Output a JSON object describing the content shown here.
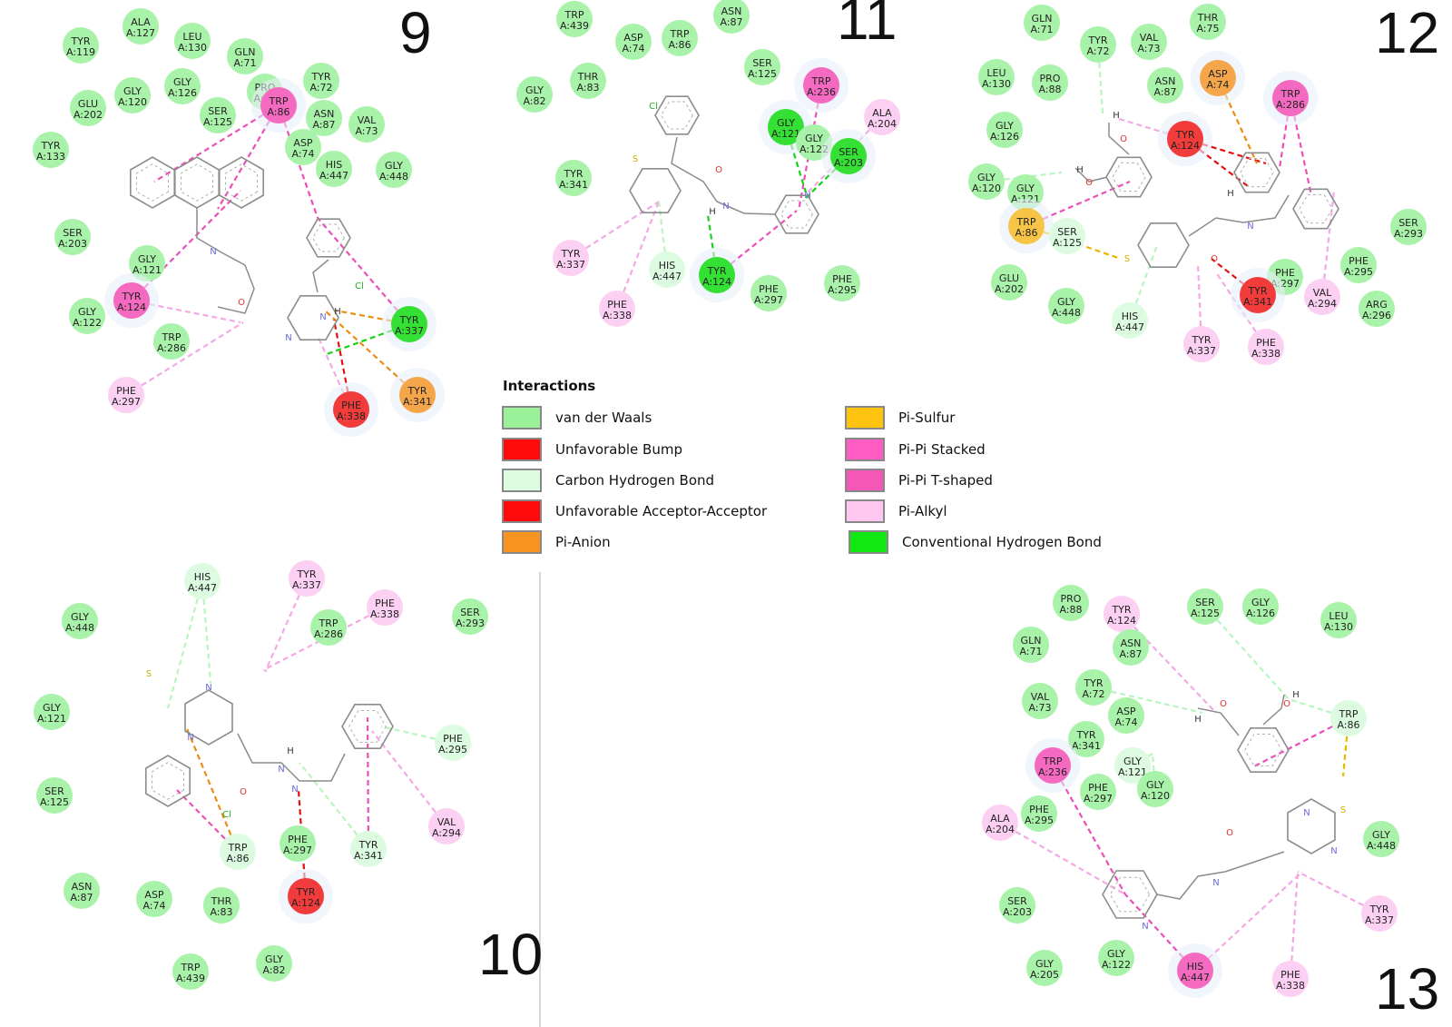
{
  "legend": {
    "title": "Interactions",
    "items": [
      {
        "label": "van der Waals",
        "color": "#99f29a"
      },
      {
        "label": "Unfavorable Bump",
        "color": "#ff0b0b"
      },
      {
        "label": "Carbon Hydrogen Bond",
        "color": "#dcfde0"
      },
      {
        "label": "Unfavorable Acceptor-Acceptor",
        "color": "#ff0b0b"
      },
      {
        "label": "Pi-Anion",
        "color": "#f7931e"
      },
      {
        "label": "Pi-Sulfur",
        "color": "#ffc20e"
      },
      {
        "label": "Pi-Pi Stacked",
        "color": "#ff5cc4"
      },
      {
        "label": "Pi-Pi T-shaped",
        "color": "#f457b5"
      },
      {
        "label": "Pi-Alkyl",
        "color": "#ffc6f0"
      },
      {
        "label": "Conventional Hydrogen Bond",
        "color": "#11e811"
      }
    ]
  },
  "panels": [
    {
      "number": "9",
      "residues": [
        {
          "name": "ALA",
          "id": "A:127",
          "type": "vdw"
        },
        {
          "name": "TYR",
          "id": "A:119",
          "type": "vdw"
        },
        {
          "name": "LEU",
          "id": "A:130",
          "type": "vdw"
        },
        {
          "name": "GLN",
          "id": "A:71",
          "type": "vdw"
        },
        {
          "name": "TYR",
          "id": "A:72",
          "type": "vdw"
        },
        {
          "name": "GLY",
          "id": "A:126",
          "type": "vdw"
        },
        {
          "name": "GLY",
          "id": "A:120",
          "type": "vdw"
        },
        {
          "name": "GLU",
          "id": "A:202",
          "type": "vdw"
        },
        {
          "name": "PRO",
          "id": "A:88",
          "type": "vdw"
        },
        {
          "name": "TRP",
          "id": "A:86",
          "type": "pipi"
        },
        {
          "name": "ASN",
          "id": "A:87",
          "type": "vdw"
        },
        {
          "name": "VAL",
          "id": "A:73",
          "type": "vdw"
        },
        {
          "name": "SER",
          "id": "A:125",
          "type": "vdw"
        },
        {
          "name": "ASP",
          "id": "A:74",
          "type": "vdw"
        },
        {
          "name": "TYR",
          "id": "A:133",
          "type": "vdw"
        },
        {
          "name": "HIS",
          "id": "A:447",
          "type": "vdw"
        },
        {
          "name": "GLY",
          "id": "A:448",
          "type": "vdw"
        },
        {
          "name": "SER",
          "id": "A:203",
          "type": "vdw"
        },
        {
          "name": "GLY",
          "id": "A:121",
          "type": "vdw"
        },
        {
          "name": "TYR",
          "id": "A:124",
          "type": "pipi"
        },
        {
          "name": "GLY",
          "id": "A:122",
          "type": "vdw"
        },
        {
          "name": "TRP",
          "id": "A:286",
          "type": "vdw"
        },
        {
          "name": "TYR",
          "id": "A:337",
          "type": "hbond"
        },
        {
          "name": "PHE",
          "id": "A:297",
          "type": "pialkyl"
        },
        {
          "name": "PHE",
          "id": "A:338",
          "type": "unfav"
        },
        {
          "name": "TYR",
          "id": "A:341",
          "type": "anion"
        }
      ]
    },
    {
      "number": "11",
      "residues": [
        {
          "name": "TRP",
          "id": "A:439",
          "type": "vdw"
        },
        {
          "name": "ASN",
          "id": "A:87",
          "type": "vdw"
        },
        {
          "name": "ASP",
          "id": "A:74",
          "type": "vdw"
        },
        {
          "name": "TRP",
          "id": "A:86",
          "type": "vdw"
        },
        {
          "name": "GLY",
          "id": "A:82",
          "type": "vdw"
        },
        {
          "name": "THR",
          "id": "A:83",
          "type": "vdw"
        },
        {
          "name": "SER",
          "id": "A:125",
          "type": "vdw"
        },
        {
          "name": "TRP",
          "id": "A:236",
          "type": "pipi"
        },
        {
          "name": "ALA",
          "id": "A:204",
          "type": "pialkyl"
        },
        {
          "name": "GLY",
          "id": "A:121",
          "type": "hbond"
        },
        {
          "name": "GLY",
          "id": "A:122",
          "type": "vdw"
        },
        {
          "name": "SER",
          "id": "A:203",
          "type": "hbond"
        },
        {
          "name": "TYR",
          "id": "A:341",
          "type": "vdw"
        },
        {
          "name": "TYR",
          "id": "A:337",
          "type": "pialkyl"
        },
        {
          "name": "HIS",
          "id": "A:447",
          "type": "chb"
        },
        {
          "name": "TYR",
          "id": "A:124",
          "type": "hbond"
        },
        {
          "name": "PHE",
          "id": "A:297",
          "type": "vdw"
        },
        {
          "name": "PHE",
          "id": "A:295",
          "type": "vdw"
        },
        {
          "name": "PHE",
          "id": "A:338",
          "type": "pialkyl"
        }
      ]
    },
    {
      "number": "12",
      "residues": [
        {
          "name": "GLN",
          "id": "A:71",
          "type": "vdw"
        },
        {
          "name": "TYR",
          "id": "A:72",
          "type": "vdw"
        },
        {
          "name": "VAL",
          "id": "A:73",
          "type": "vdw"
        },
        {
          "name": "THR",
          "id": "A:75",
          "type": "vdw"
        },
        {
          "name": "LEU",
          "id": "A:130",
          "type": "vdw"
        },
        {
          "name": "PRO",
          "id": "A:88",
          "type": "vdw"
        },
        {
          "name": "ASN",
          "id": "A:87",
          "type": "vdw"
        },
        {
          "name": "ASP",
          "id": "A:74",
          "type": "anion"
        },
        {
          "name": "TRP",
          "id": "A:286",
          "type": "pipi"
        },
        {
          "name": "GLY",
          "id": "A:126",
          "type": "vdw"
        },
        {
          "name": "TYR",
          "id": "A:124",
          "type": "unfav"
        },
        {
          "name": "GLY",
          "id": "A:120",
          "type": "vdw"
        },
        {
          "name": "GLY",
          "id": "A:121",
          "type": "vdw"
        },
        {
          "name": "TRP",
          "id": "A:86",
          "type": "sulfur"
        },
        {
          "name": "SER",
          "id": "A:125",
          "type": "chb"
        },
        {
          "name": "SER",
          "id": "A:293",
          "type": "vdw"
        },
        {
          "name": "GLU",
          "id": "A:202",
          "type": "vdw"
        },
        {
          "name": "PHE",
          "id": "A:295",
          "type": "vdw"
        },
        {
          "name": "PHE",
          "id": "A:297",
          "type": "vdw"
        },
        {
          "name": "TYR",
          "id": "A:341",
          "type": "unfav"
        },
        {
          "name": "VAL",
          "id": "A:294",
          "type": "pialkyl"
        },
        {
          "name": "ARG",
          "id": "A:296",
          "type": "vdw"
        },
        {
          "name": "GLY",
          "id": "A:448",
          "type": "vdw"
        },
        {
          "name": "HIS",
          "id": "A:447",
          "type": "chb"
        },
        {
          "name": "TYR",
          "id": "A:337",
          "type": "pialkyl"
        },
        {
          "name": "PHE",
          "id": "A:338",
          "type": "pialkyl"
        }
      ]
    },
    {
      "number": "10",
      "residues": [
        {
          "name": "HIS",
          "id": "A:447",
          "type": "chb"
        },
        {
          "name": "TYR",
          "id": "A:337",
          "type": "pialkyl"
        },
        {
          "name": "PHE",
          "id": "A:338",
          "type": "pialkyl"
        },
        {
          "name": "TRP",
          "id": "A:286",
          "type": "vdw"
        },
        {
          "name": "SER",
          "id": "A:293",
          "type": "vdw"
        },
        {
          "name": "GLY",
          "id": "A:448",
          "type": "vdw"
        },
        {
          "name": "GLY",
          "id": "A:121",
          "type": "vdw"
        },
        {
          "name": "PHE",
          "id": "A:295",
          "type": "chb"
        },
        {
          "name": "SER",
          "id": "A:125",
          "type": "vdw"
        },
        {
          "name": "VAL",
          "id": "A:294",
          "type": "pialkyl"
        },
        {
          "name": "TRP",
          "id": "A:86",
          "type": "chb"
        },
        {
          "name": "PHE",
          "id": "A:297",
          "type": "vdw"
        },
        {
          "name": "TYR",
          "id": "A:341",
          "type": "chb"
        },
        {
          "name": "ASN",
          "id": "A:87",
          "type": "vdw"
        },
        {
          "name": "ASP",
          "id": "A:74",
          "type": "vdw"
        },
        {
          "name": "THR",
          "id": "A:83",
          "type": "vdw"
        },
        {
          "name": "TYR",
          "id": "A:124",
          "type": "unfav"
        },
        {
          "name": "TRP",
          "id": "A:439",
          "type": "vdw"
        },
        {
          "name": "GLY",
          "id": "A:82",
          "type": "vdw"
        }
      ]
    },
    {
      "number": "13",
      "residues": [
        {
          "name": "PRO",
          "id": "A:88",
          "type": "vdw"
        },
        {
          "name": "TYR",
          "id": "A:124",
          "type": "pialkyl"
        },
        {
          "name": "SER",
          "id": "A:125",
          "type": "vdw"
        },
        {
          "name": "GLY",
          "id": "A:126",
          "type": "vdw"
        },
        {
          "name": "LEU",
          "id": "A:130",
          "type": "vdw"
        },
        {
          "name": "GLN",
          "id": "A:71",
          "type": "vdw"
        },
        {
          "name": "ASN",
          "id": "A:87",
          "type": "vdw"
        },
        {
          "name": "VAL",
          "id": "A:73",
          "type": "vdw"
        },
        {
          "name": "TYR",
          "id": "A:72",
          "type": "vdw"
        },
        {
          "name": "ASP",
          "id": "A:74",
          "type": "vdw"
        },
        {
          "name": "TRP",
          "id": "A:86",
          "type": "chb"
        },
        {
          "name": "TYR",
          "id": "A:341",
          "type": "vdw"
        },
        {
          "name": "TRP",
          "id": "A:236",
          "type": "pipi"
        },
        {
          "name": "GLY",
          "id": "A:121",
          "type": "chb"
        },
        {
          "name": "PHE",
          "id": "A:297",
          "type": "vdw"
        },
        {
          "name": "GLY",
          "id": "A:120",
          "type": "vdw"
        },
        {
          "name": "PHE",
          "id": "A:295",
          "type": "vdw"
        },
        {
          "name": "ALA",
          "id": "A:204",
          "type": "pialkyl"
        },
        {
          "name": "GLY",
          "id": "A:448",
          "type": "vdw"
        },
        {
          "name": "SER",
          "id": "A:203",
          "type": "vdw"
        },
        {
          "name": "TYR",
          "id": "A:337",
          "type": "pialkyl"
        },
        {
          "name": "GLY",
          "id": "A:205",
          "type": "vdw"
        },
        {
          "name": "GLY",
          "id": "A:122",
          "type": "vdw"
        },
        {
          "name": "HIS",
          "id": "A:447",
          "type": "pipi"
        },
        {
          "name": "PHE",
          "id": "A:338",
          "type": "pialkyl"
        }
      ]
    }
  ],
  "type_colors": {
    "vdw": "#a9f2a9",
    "chb": "#dcfbe0",
    "pipi": "#f46ac0",
    "pialkyl": "#fcd0f2",
    "unfav": "#f23b3b",
    "anion": "#f5a64a",
    "sulfur": "#f6c548",
    "hbond": "#33e033"
  },
  "atom_labels": {
    "chlorine": "Cl",
    "nitrogen": "N",
    "oxygen": "O",
    "hydrogen": "H",
    "sulfur": "S"
  }
}
